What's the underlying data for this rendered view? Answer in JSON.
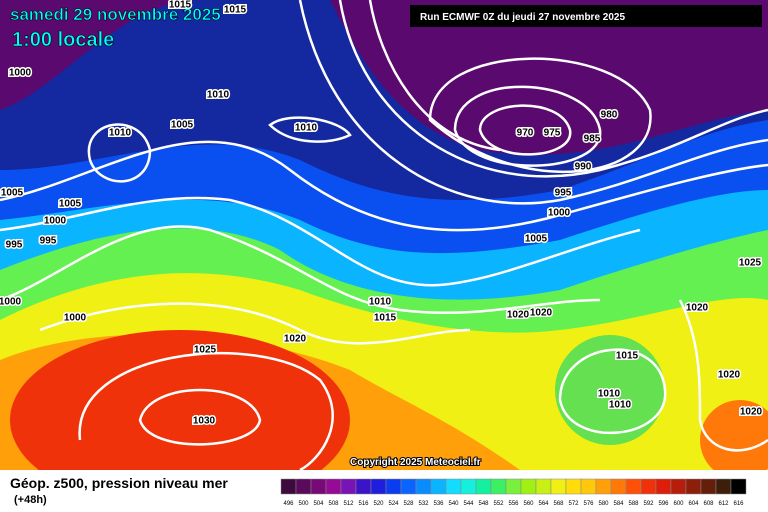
{
  "header": {
    "date": "samedi 29 novembre 2025",
    "time": "1:00 locale",
    "run": "Run ECMWF 0Z du jeudi 27 novembre 2025"
  },
  "copyright": "Copyright 2025 Meteociel.fr",
  "legend": {
    "title": "Géop. z500, pression niveau mer",
    "lead": "(+48h)",
    "values": [
      496,
      500,
      504,
      508,
      512,
      516,
      520,
      524,
      528,
      532,
      536,
      540,
      544,
      548,
      552,
      556,
      560,
      564,
      568,
      572,
      576,
      580,
      584,
      588,
      592,
      596,
      600,
      604,
      608,
      612,
      616
    ],
    "colors": [
      "#3c0a3c",
      "#5a0a5a",
      "#780a78",
      "#960a96",
      "#7814b4",
      "#3c14c8",
      "#1e1edc",
      "#0a3cf0",
      "#0a64ff",
      "#0a8cff",
      "#0ab4ff",
      "#14dcff",
      "#14f0dc",
      "#14f0a0",
      "#3cf064",
      "#78f03c",
      "#a0f014",
      "#c8f014",
      "#f0f014",
      "#ffdc0a",
      "#ffc80a",
      "#ffa00a",
      "#ff780a",
      "#ff500a",
      "#f0320a",
      "#dc1e0a",
      "#b41e0a",
      "#8c1e0a",
      "#641e0a",
      "#3c1e0a",
      "#000000"
    ]
  },
  "isobar_labels": [
    "1015",
    "1015",
    "1000",
    "1010",
    "1005",
    "1010",
    "1010",
    "970",
    "975",
    "980",
    "985",
    "990",
    "995",
    "1000",
    "1005",
    "1005",
    "1005",
    "1000",
    "995",
    "995",
    "1025",
    "1000",
    "1000",
    "1010",
    "1015",
    "1020",
    "1020",
    "1020",
    "1020",
    "1025",
    "1015",
    "1030",
    "1010",
    "1010",
    "1020",
    "1020"
  ]
}
